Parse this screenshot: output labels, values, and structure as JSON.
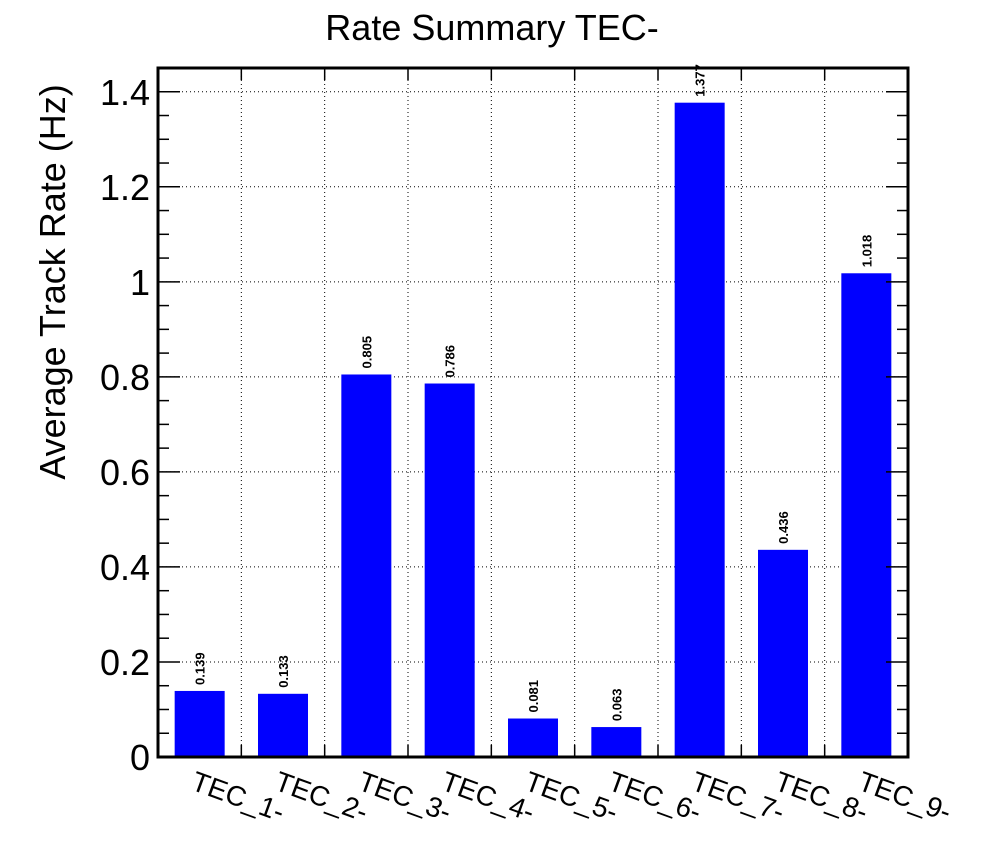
{
  "chart_data": {
    "type": "bar",
    "title": "Rate Summary TEC-",
    "xlabel": "",
    "ylabel": "Average Track Rate (Hz)",
    "categories": [
      "TEC_1-",
      "TEC_2-",
      "TEC_3-",
      "TEC_4-",
      "TEC_5-",
      "TEC_6-",
      "TEC_7-",
      "TEC_8-",
      "TEC_9-"
    ],
    "values": [
      0.139,
      0.133,
      0.805,
      0.786,
      0.081,
      0.063,
      1.377,
      0.436,
      1.018
    ],
    "value_labels": [
      "0.139",
      "0.133",
      "0.805",
      "0.786",
      "0.081",
      "0.063",
      "1.377",
      "0.436",
      "1.018"
    ],
    "ylim": [
      0,
      1.45
    ],
    "yticks": [
      0,
      0.2,
      0.4,
      0.6,
      0.8,
      1,
      1.2,
      1.4
    ],
    "ytick_labels": [
      "0",
      "0.2",
      "0.4",
      "0.6",
      "0.8",
      "1",
      "1.2",
      "1.4"
    ],
    "grid": true,
    "bar_color": "#0000ff"
  }
}
